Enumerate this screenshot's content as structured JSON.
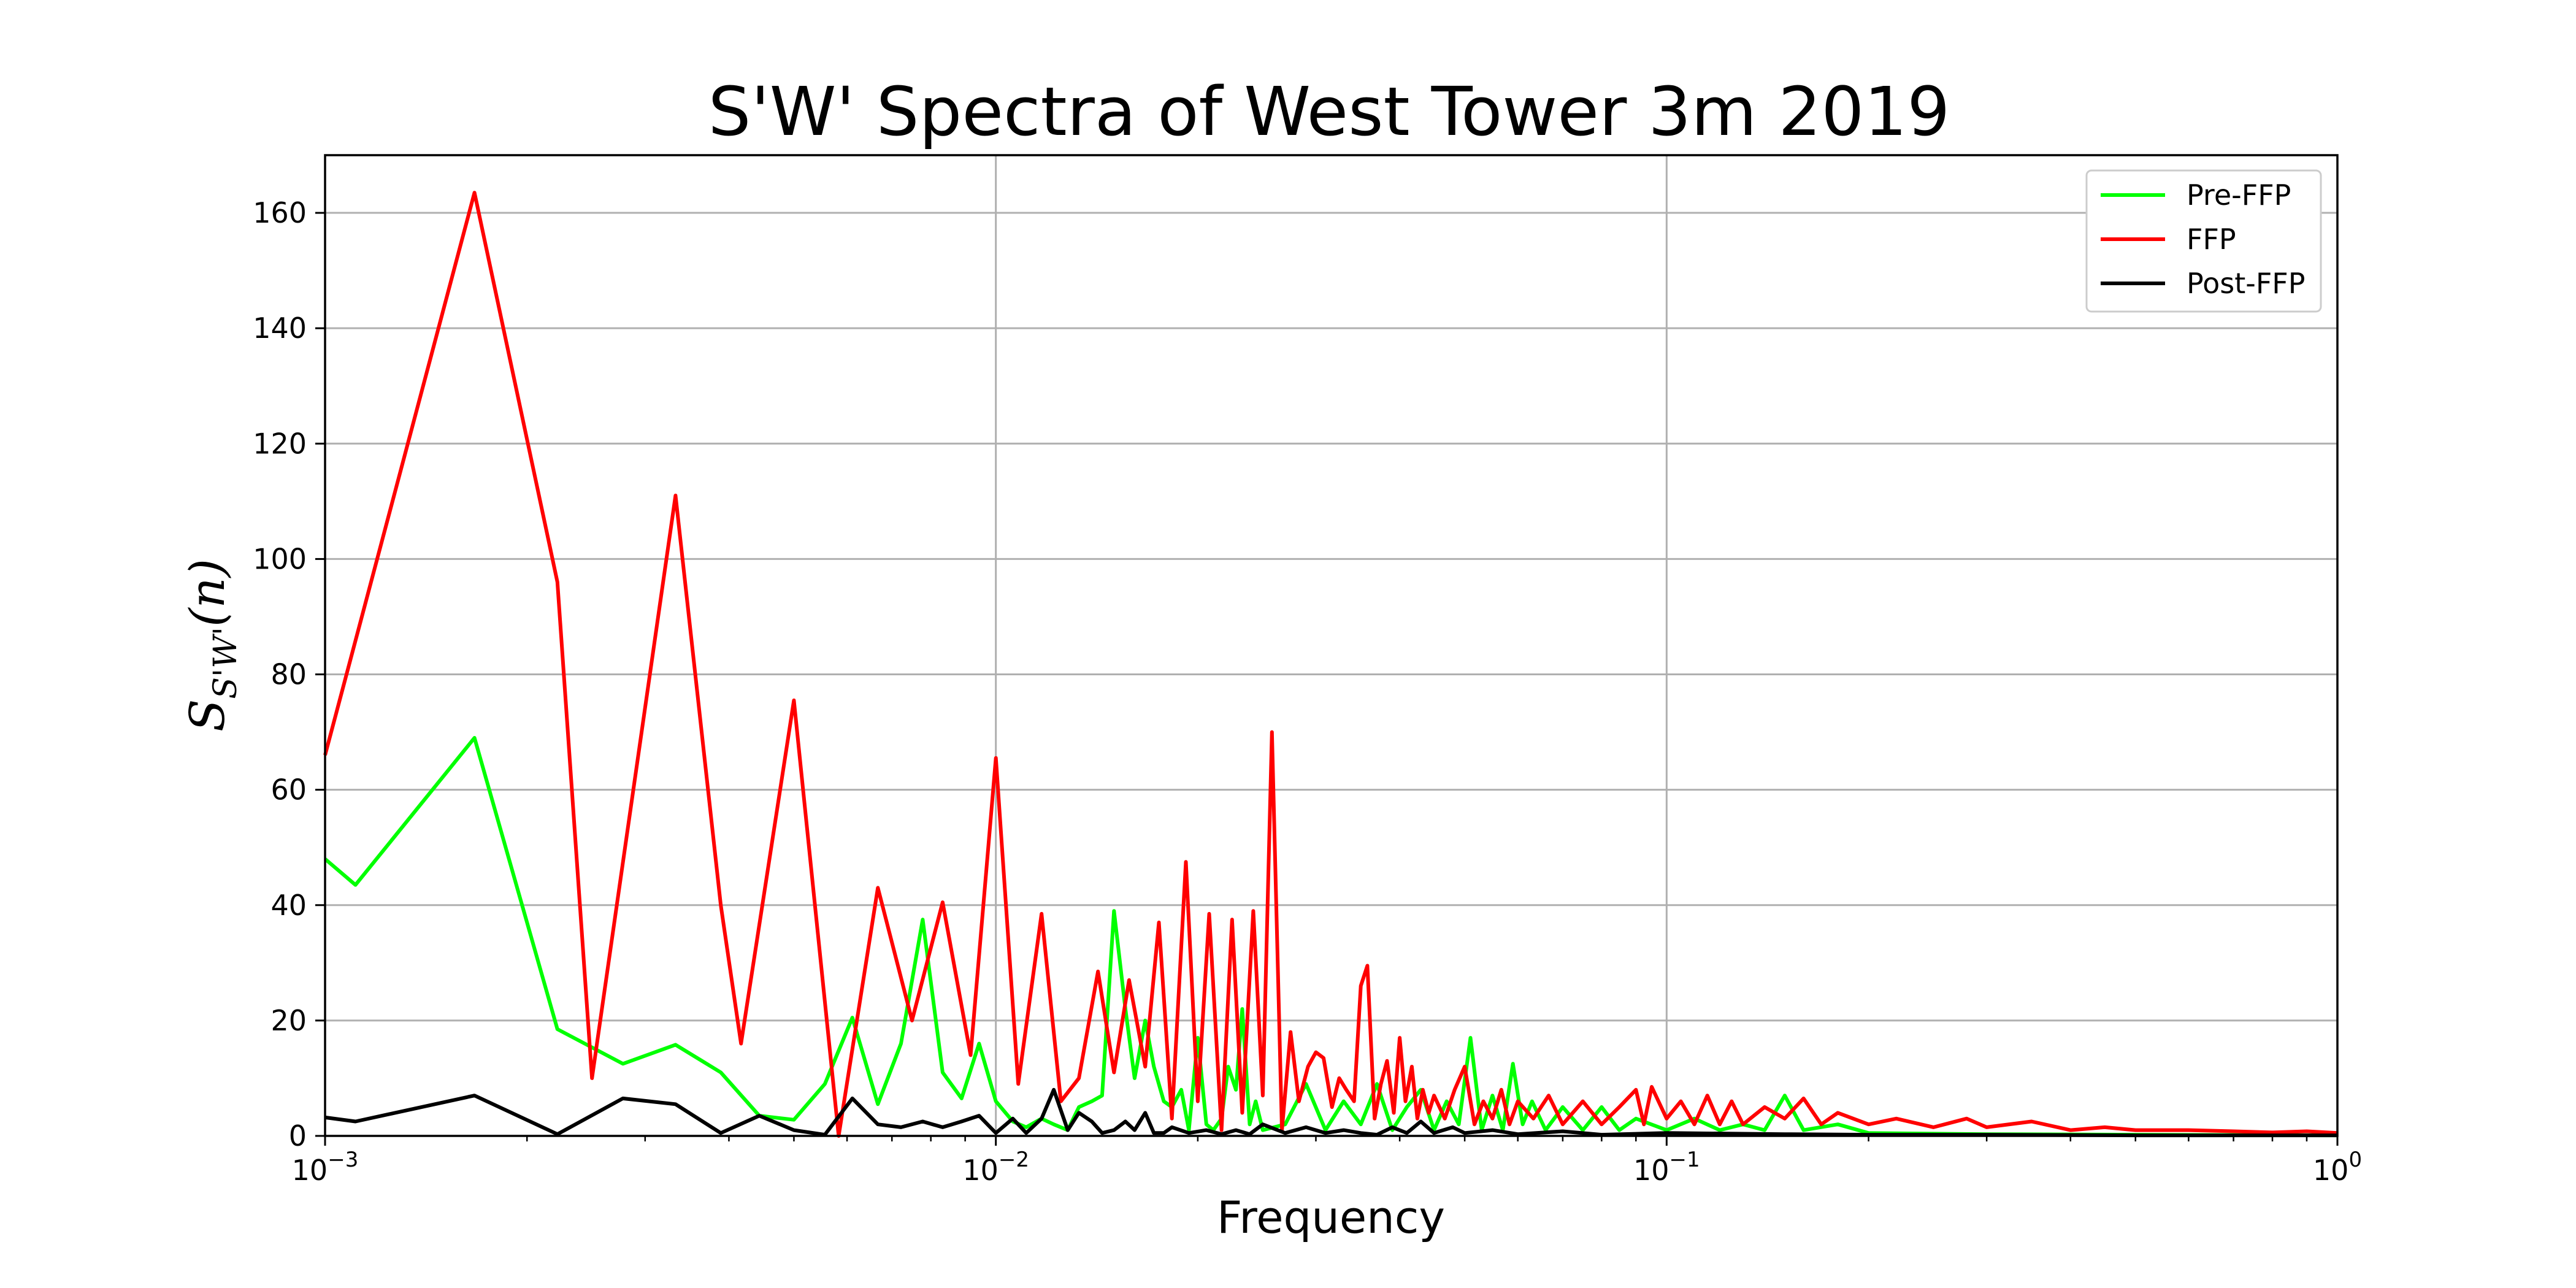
{
  "chart_data": {
    "type": "line",
    "title": "S'W' Spectra of West Tower 3m 2019",
    "xlabel": "Frequency",
    "ylabel": {
      "main": "S",
      "sub": "S'W'",
      "paren": "(n)"
    },
    "xscale": "log",
    "xlim": [
      0.001,
      1
    ],
    "ylim": [
      0,
      170
    ],
    "x_ticks": [
      {
        "base": "10",
        "exp": "−3",
        "value": 0.001
      },
      {
        "base": "10",
        "exp": "−2",
        "value": 0.01
      },
      {
        "base": "10",
        "exp": "−1",
        "value": 0.1
      },
      {
        "base": "10",
        "exp": "0",
        "value": 1
      }
    ],
    "y_ticks": [
      0,
      20,
      40,
      60,
      80,
      100,
      120,
      140,
      160
    ],
    "grid": true,
    "legend_position": "top-right",
    "series": [
      {
        "name": "Pre-FFP",
        "color": "#00ff00",
        "points": [
          [
            0.001,
            48
          ],
          [
            0.00111,
            43.5
          ],
          [
            0.00167,
            69
          ],
          [
            0.00222,
            18.5
          ],
          [
            0.00278,
            12.5
          ],
          [
            0.00333,
            15.8
          ],
          [
            0.00389,
            11
          ],
          [
            0.00444,
            3.5
          ],
          [
            0.005,
            2.8
          ],
          [
            0.00556,
            9
          ],
          [
            0.00611,
            20.5
          ],
          [
            0.00667,
            5.5
          ],
          [
            0.00722,
            16
          ],
          [
            0.00778,
            37.5
          ],
          [
            0.00833,
            11
          ],
          [
            0.00889,
            6.5
          ],
          [
            0.00944,
            16
          ],
          [
            0.01,
            6
          ],
          [
            0.0106,
            2.5
          ],
          [
            0.0111,
            1.5
          ],
          [
            0.0117,
            3
          ],
          [
            0.0122,
            2
          ],
          [
            0.0128,
            1
          ],
          [
            0.0133,
            5
          ],
          [
            0.0139,
            6
          ],
          [
            0.0144,
            7
          ],
          [
            0.015,
            39
          ],
          [
            0.0156,
            22
          ],
          [
            0.0161,
            10
          ],
          [
            0.0167,
            20
          ],
          [
            0.0172,
            12
          ],
          [
            0.0178,
            6
          ],
          [
            0.0183,
            5
          ],
          [
            0.0189,
            8
          ],
          [
            0.0194,
            1
          ],
          [
            0.02,
            17
          ],
          [
            0.0206,
            2
          ],
          [
            0.0211,
            1
          ],
          [
            0.0217,
            3
          ],
          [
            0.0222,
            12
          ],
          [
            0.0228,
            8
          ],
          [
            0.0233,
            22
          ],
          [
            0.0239,
            2
          ],
          [
            0.0244,
            6
          ],
          [
            0.025,
            1
          ],
          [
            0.027,
            2
          ],
          [
            0.029,
            9
          ],
          [
            0.031,
            1
          ],
          [
            0.033,
            6
          ],
          [
            0.035,
            2
          ],
          [
            0.037,
            9
          ],
          [
            0.039,
            1
          ],
          [
            0.041,
            5
          ],
          [
            0.043,
            8
          ],
          [
            0.045,
            1
          ],
          [
            0.047,
            6
          ],
          [
            0.049,
            2
          ],
          [
            0.051,
            17
          ],
          [
            0.053,
            1
          ],
          [
            0.055,
            7
          ],
          [
            0.057,
            1
          ],
          [
            0.059,
            12.5
          ],
          [
            0.061,
            2
          ],
          [
            0.063,
            6
          ],
          [
            0.066,
            1
          ],
          [
            0.07,
            5
          ],
          [
            0.075,
            1
          ],
          [
            0.08,
            5
          ],
          [
            0.085,
            1
          ],
          [
            0.09,
            3
          ],
          [
            0.1,
            1
          ],
          [
            0.11,
            3
          ],
          [
            0.12,
            1
          ],
          [
            0.13,
            2
          ],
          [
            0.14,
            1
          ],
          [
            0.15,
            7
          ],
          [
            0.16,
            1
          ],
          [
            0.18,
            2
          ],
          [
            0.2,
            0.5
          ],
          [
            0.3,
            0.3
          ],
          [
            0.5,
            0.2
          ],
          [
            1.0,
            0.1
          ]
        ]
      },
      {
        "name": "FFP",
        "color": "#ff0000",
        "points": [
          [
            0.001,
            66
          ],
          [
            0.00167,
            163.5
          ],
          [
            0.00222,
            96
          ],
          [
            0.0025,
            10
          ],
          [
            0.00333,
            111
          ],
          [
            0.00389,
            40
          ],
          [
            0.00417,
            16
          ],
          [
            0.005,
            75.5
          ],
          [
            0.00583,
            0
          ],
          [
            0.00667,
            43
          ],
          [
            0.0075,
            20
          ],
          [
            0.00833,
            40.5
          ],
          [
            0.00917,
            14
          ],
          [
            0.01,
            65.5
          ],
          [
            0.0108,
            9
          ],
          [
            0.0117,
            38.5
          ],
          [
            0.0125,
            6
          ],
          [
            0.0133,
            10
          ],
          [
            0.0142,
            28.5
          ],
          [
            0.015,
            11
          ],
          [
            0.0158,
            27
          ],
          [
            0.0167,
            12
          ],
          [
            0.0175,
            37
          ],
          [
            0.0183,
            3
          ],
          [
            0.0192,
            47.5
          ],
          [
            0.02,
            6
          ],
          [
            0.0208,
            38.5
          ],
          [
            0.0217,
            1
          ],
          [
            0.0225,
            37.5
          ],
          [
            0.0233,
            4
          ],
          [
            0.0242,
            39
          ],
          [
            0.025,
            7
          ],
          [
            0.0258,
            70
          ],
          [
            0.0267,
            1
          ],
          [
            0.0275,
            18
          ],
          [
            0.0283,
            6
          ],
          [
            0.0292,
            12
          ],
          [
            0.03,
            14.5
          ],
          [
            0.0308,
            13.5
          ],
          [
            0.0317,
            5
          ],
          [
            0.0325,
            10
          ],
          [
            0.0333,
            8
          ],
          [
            0.0342,
            6
          ],
          [
            0.035,
            26
          ],
          [
            0.0358,
            29.5
          ],
          [
            0.0367,
            3
          ],
          [
            0.0375,
            9
          ],
          [
            0.0383,
            13
          ],
          [
            0.0392,
            4
          ],
          [
            0.04,
            17
          ],
          [
            0.0408,
            6
          ],
          [
            0.0417,
            12
          ],
          [
            0.0425,
            3
          ],
          [
            0.0433,
            8
          ],
          [
            0.0442,
            4
          ],
          [
            0.045,
            7
          ],
          [
            0.0467,
            3
          ],
          [
            0.0483,
            8
          ],
          [
            0.05,
            12
          ],
          [
            0.0517,
            2
          ],
          [
            0.0533,
            6
          ],
          [
            0.055,
            3
          ],
          [
            0.0567,
            8
          ],
          [
            0.0583,
            2
          ],
          [
            0.06,
            6
          ],
          [
            0.0633,
            3
          ],
          [
            0.0667,
            7
          ],
          [
            0.07,
            2
          ],
          [
            0.075,
            6
          ],
          [
            0.08,
            2
          ],
          [
            0.085,
            5
          ],
          [
            0.09,
            8
          ],
          [
            0.0925,
            2
          ],
          [
            0.095,
            8.5
          ],
          [
            0.1,
            3
          ],
          [
            0.105,
            6
          ],
          [
            0.11,
            2
          ],
          [
            0.115,
            7
          ],
          [
            0.12,
            2
          ],
          [
            0.125,
            6
          ],
          [
            0.13,
            2
          ],
          [
            0.14,
            5
          ],
          [
            0.15,
            3
          ],
          [
            0.16,
            6.5
          ],
          [
            0.17,
            2
          ],
          [
            0.18,
            4
          ],
          [
            0.2,
            2
          ],
          [
            0.22,
            3
          ],
          [
            0.25,
            1.5
          ],
          [
            0.28,
            3
          ],
          [
            0.3,
            1.5
          ],
          [
            0.35,
            2.5
          ],
          [
            0.4,
            1
          ],
          [
            0.45,
            1.5
          ],
          [
            0.5,
            1
          ],
          [
            0.6,
            1
          ],
          [
            0.7,
            0.8
          ],
          [
            0.8,
            0.6
          ],
          [
            0.9,
            0.8
          ],
          [
            1.0,
            0.5
          ]
        ]
      },
      {
        "name": "Post-FFP",
        "color": "#000000",
        "points": [
          [
            0.001,
            3.2
          ],
          [
            0.00111,
            2.5
          ],
          [
            0.00167,
            7
          ],
          [
            0.00222,
            0.3
          ],
          [
            0.00278,
            6.5
          ],
          [
            0.00333,
            5.5
          ],
          [
            0.00389,
            0.5
          ],
          [
            0.00444,
            3.5
          ],
          [
            0.005,
            1
          ],
          [
            0.00556,
            0.2
          ],
          [
            0.00611,
            6.5
          ],
          [
            0.00667,
            2
          ],
          [
            0.00722,
            1.5
          ],
          [
            0.00778,
            2.5
          ],
          [
            0.00833,
            1.5
          ],
          [
            0.00889,
            2.5
          ],
          [
            0.00944,
            3.5
          ],
          [
            0.01,
            0.5
          ],
          [
            0.0106,
            3
          ],
          [
            0.0111,
            0.5
          ],
          [
            0.0117,
            3
          ],
          [
            0.0122,
            8
          ],
          [
            0.0128,
            1
          ],
          [
            0.0133,
            4
          ],
          [
            0.0139,
            2.5
          ],
          [
            0.0144,
            0.5
          ],
          [
            0.015,
            1
          ],
          [
            0.0156,
            2.5
          ],
          [
            0.0161,
            1
          ],
          [
            0.0167,
            4
          ],
          [
            0.0172,
            0.5
          ],
          [
            0.0178,
            0.5
          ],
          [
            0.0183,
            1.5
          ],
          [
            0.0194,
            0.5
          ],
          [
            0.0206,
            1
          ],
          [
            0.0217,
            0.3
          ],
          [
            0.0228,
            1
          ],
          [
            0.0239,
            0.3
          ],
          [
            0.025,
            2
          ],
          [
            0.027,
            0.5
          ],
          [
            0.029,
            1.5
          ],
          [
            0.031,
            0.5
          ],
          [
            0.033,
            1
          ],
          [
            0.035,
            0.5
          ],
          [
            0.037,
            0.2
          ],
          [
            0.039,
            1.5
          ],
          [
            0.041,
            0.5
          ],
          [
            0.043,
            2.5
          ],
          [
            0.045,
            0.5
          ],
          [
            0.048,
            1.5
          ],
          [
            0.05,
            0.5
          ],
          [
            0.055,
            1
          ],
          [
            0.06,
            0.3
          ],
          [
            0.07,
            0.8
          ],
          [
            0.08,
            0.2
          ],
          [
            0.1,
            0.5
          ],
          [
            0.15,
            0.3
          ],
          [
            0.2,
            0.2
          ],
          [
            0.3,
            0.2
          ],
          [
            0.5,
            0.1
          ],
          [
            1.0,
            0.1
          ]
        ]
      }
    ]
  }
}
